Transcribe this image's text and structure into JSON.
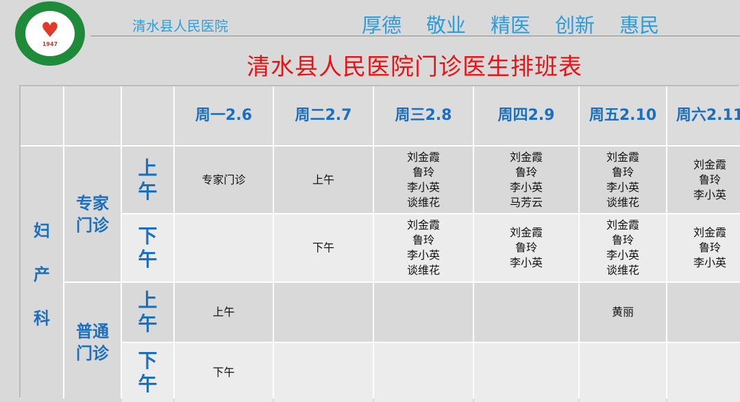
{
  "header": {
    "hospital_name": "清水县人民医院",
    "logo_year": "1947",
    "logo_text": "The People's Hospital of Qingshui",
    "slogans": [
      "厚德",
      "敬业",
      "精医",
      "创新",
      "惠民"
    ]
  },
  "title": "清水县人民医院门诊医生排班表",
  "table": {
    "days": [
      "周一2.6",
      "周二2.7",
      "周三2.8",
      "周四2.9",
      "周五2.10",
      "周六2.11"
    ],
    "department": "妇产科",
    "clinics": [
      "专家门诊",
      "普通门诊"
    ],
    "periods": [
      "上午",
      "下午"
    ],
    "rows": [
      [
        [
          "专家门诊"
        ],
        [
          "上午"
        ],
        [
          "刘金霞",
          "鲁玲",
          "李小英",
          "谈维花"
        ],
        [
          "刘金霞",
          "鲁玲",
          "李小英",
          "马芳云"
        ],
        [
          "刘金霞",
          "鲁玲",
          "李小英",
          "谈维花"
        ],
        [
          "刘金霞",
          "鲁玲",
          "李小英"
        ]
      ],
      [
        [],
        [
          "下午"
        ],
        [
          "刘金霞",
          "鲁玲",
          "李小英",
          "谈维花"
        ],
        [
          "刘金霞",
          "鲁玲",
          "李小英"
        ],
        [
          "刘金霞",
          "鲁玲",
          "李小英",
          "谈维花"
        ],
        [
          "刘金霞",
          "鲁玲",
          "李小英"
        ]
      ],
      [
        [
          "上午"
        ],
        [],
        [],
        [],
        [
          "黄丽"
        ],
        []
      ],
      [
        [
          "下午"
        ],
        [],
        [],
        [],
        [],
        []
      ]
    ]
  }
}
